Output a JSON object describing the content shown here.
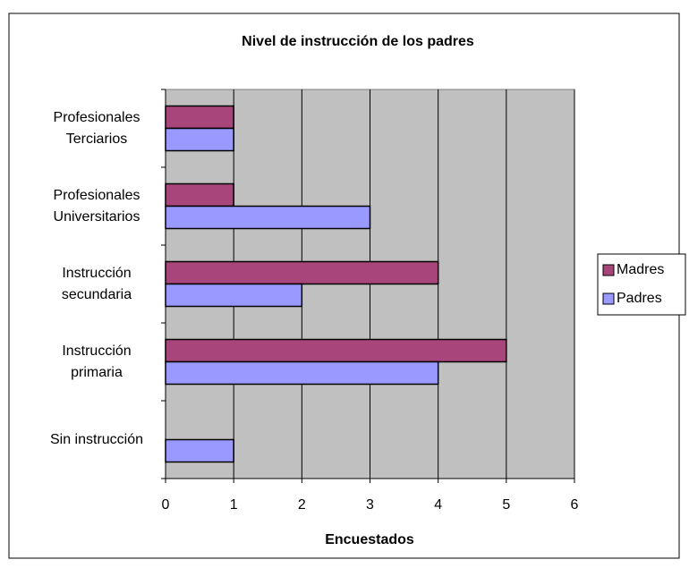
{
  "chart_data": {
    "type": "hbar",
    "title": "Nivel de instrucción de los padres",
    "xlabel": "Encuestados",
    "categories": [
      "Profesionales Terciarios",
      "Profesionales Universitarios",
      "Instrucción secundaria",
      "Instrucción primaria",
      "Sin instrucción"
    ],
    "series": [
      {
        "name": "Madres",
        "color": "#a8457a",
        "values": [
          1,
          1,
          4,
          5,
          0
        ]
      },
      {
        "name": "Padres",
        "color": "#9999ff",
        "values": [
          1,
          3,
          2,
          4,
          1
        ]
      }
    ],
    "xlim": [
      0,
      6
    ],
    "xticks": [
      0,
      1,
      2,
      3,
      4,
      5,
      6
    ],
    "grid": true,
    "legend": "right"
  }
}
